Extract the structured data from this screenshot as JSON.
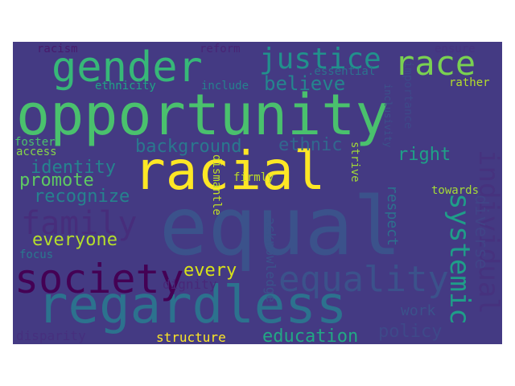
{
  "words": {
    "opportunity": {
      "text": "opportunity",
      "color": "#4ac16d"
    },
    "racial": {
      "text": "racial",
      "color": "#fde725"
    },
    "equal": {
      "text": "equal",
      "color": "#3b528b"
    },
    "regardless": {
      "text": "regardless",
      "color": "#2c728e"
    },
    "gender": {
      "text": "gender",
      "color": "#37b878"
    },
    "justice": {
      "text": "justice",
      "color": "#21918c"
    },
    "race": {
      "text": "race",
      "color": "#7ad151"
    },
    "believe": {
      "text": "believe",
      "color": "#25858e"
    },
    "background": {
      "text": "background",
      "color": "#2a788e"
    },
    "ethnic": {
      "text": "ethnic",
      "color": "#31688e"
    },
    "right": {
      "text": "right",
      "color": "#1fa187"
    },
    "identity": {
      "text": "identity",
      "color": "#25848e"
    },
    "promote": {
      "text": "promote",
      "color": "#5ec962"
    },
    "recognize": {
      "text": "recognize",
      "color": "#26828e"
    },
    "family": {
      "text": "family",
      "color": "#472d7b"
    },
    "everyone": {
      "text": "everyone",
      "color": "#b5de2b"
    },
    "society": {
      "text": "society",
      "color": "#440154"
    },
    "equality": {
      "text": "equality",
      "color": "#3b528b"
    },
    "every": {
      "text": "every",
      "color": "#d8e219"
    },
    "education": {
      "text": "education",
      "color": "#22a884"
    },
    "structure": {
      "text": "structure",
      "color": "#fde725"
    },
    "policy": {
      "text": "policy",
      "color": "#3e4989"
    },
    "work": {
      "text": "work",
      "color": "#3b528b"
    },
    "disparity": {
      "text": "disparity",
      "color": "#46307e"
    },
    "dignity": {
      "text": "dignity",
      "color": "#482878"
    },
    "focus": {
      "text": "focus",
      "color": "#2a788e"
    },
    "foster": {
      "text": "foster",
      "color": "#4ac16d"
    },
    "access": {
      "text": "access",
      "color": "#86d549"
    },
    "racism": {
      "text": "racism",
      "color": "#481a6c"
    },
    "reform": {
      "text": "reform",
      "color": "#482475"
    },
    "ensure": {
      "text": "ensure",
      "color": "#46337f"
    },
    "essential": {
      "text": ".essential",
      "color": "#2c728e"
    },
    "ethnicity": {
      "text": "ethnicity",
      "color": "#20a486"
    },
    "include": {
      "text": "include",
      "color": "#26828e"
    },
    "rather": {
      "text": "rather",
      "color": "#b5de2b"
    },
    "firmly": {
      "text": "firmly",
      "color": "#bddf26"
    },
    "towards": {
      "text": "towards",
      "color": "#a5db36"
    },
    "importance": {
      "text": "importance",
      "color": "#3e4989"
    },
    "inclusivity": {
      "text": "inclusivity",
      "color": "#3b528b"
    },
    "dismantle": {
      "text": "dismantle",
      "color": "#c0df25"
    },
    "strive": {
      "text": "strive",
      "color": "#a2da37"
    },
    "respect": {
      "text": "respect",
      "color": "#2d708e"
    },
    "acknowledge": {
      "text": "acknowledge",
      "color": "#3b528b"
    },
    "systemic": {
      "text": "systemic",
      "color": "#1f9e89"
    },
    "individual": {
      "text": "individual",
      "color": "#46327e"
    },
    "diverse": {
      "text": "diverse",
      "color": "#414487"
    }
  },
  "background_color": "#443a83"
}
